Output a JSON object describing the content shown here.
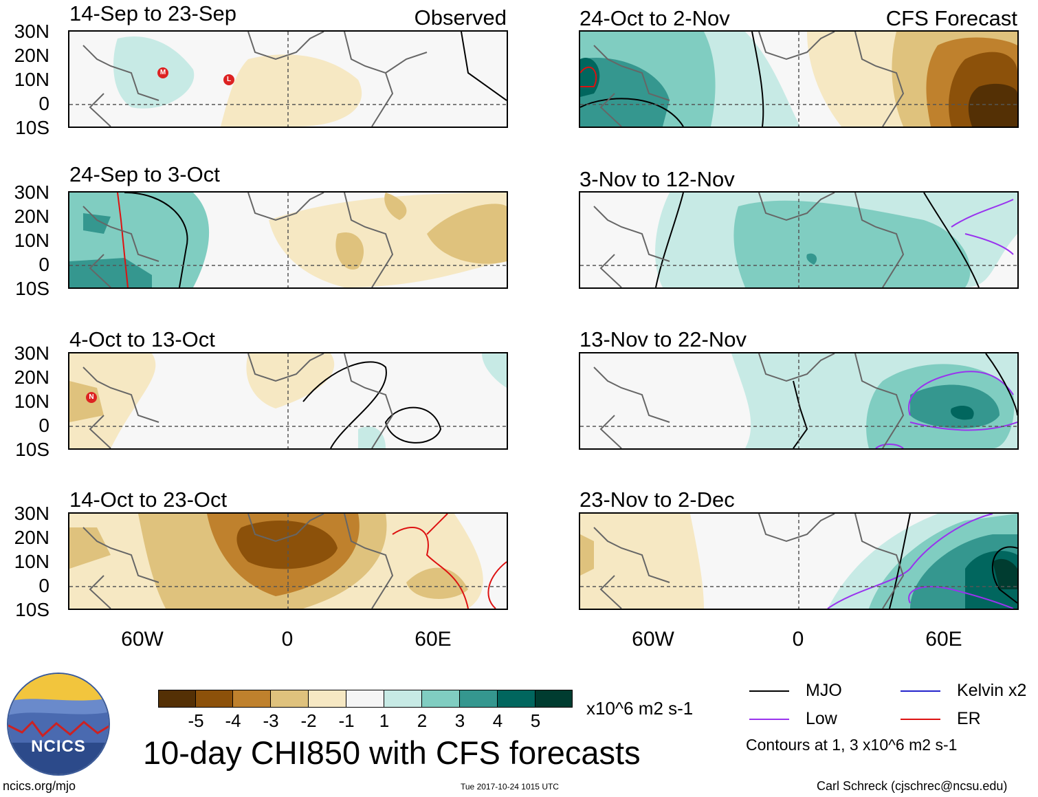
{
  "left_panels": [
    {
      "title": "14-Sep to 23-Sep",
      "tag": "Observed"
    },
    {
      "title": "24-Sep to 3-Oct",
      "tag": ""
    },
    {
      "title": "4-Oct to 13-Oct",
      "tag": ""
    },
    {
      "title": "14-Oct to 23-Oct",
      "tag": ""
    }
  ],
  "right_panels": [
    {
      "title": "24-Oct to 2-Nov",
      "tag": "CFS Forecast"
    },
    {
      "title": "3-Nov to 12-Nov",
      "tag": ""
    },
    {
      "title": "13-Nov to 22-Nov",
      "tag": ""
    },
    {
      "title": "23-Nov to 2-Dec",
      "tag": ""
    }
  ],
  "lat_labels": [
    "30N",
    "20N",
    "10N",
    "0",
    "10S"
  ],
  "lon_labels": [
    "60W",
    "0",
    "60E"
  ],
  "storm_markers": [
    {
      "panel": 0,
      "letter": "M"
    },
    {
      "panel": 0,
      "letter": "L"
    },
    {
      "panel": 2,
      "letter": "N"
    }
  ],
  "colorbar": {
    "colors": [
      "#543005",
      "#8c510a",
      "#bf812d",
      "#dfc27d",
      "#f6e8c3",
      "#f5f5f5",
      "#c7eae5",
      "#80cdc1",
      "#35978f",
      "#01665e",
      "#003c30"
    ],
    "labels": [
      "-5",
      "-4",
      "-3",
      "-2",
      "-1",
      "1",
      "2",
      "3",
      "4",
      "5"
    ],
    "units": "x10^6 m2 s-1"
  },
  "main_title": "10-day CHI850 with CFS forecasts",
  "legend": {
    "items": [
      {
        "label": "MJO",
        "color": "#000000"
      },
      {
        "label": "Kelvin x2",
        "color": "#2222cc"
      },
      {
        "label": "Low",
        "color": "#9933ee"
      },
      {
        "label": "ER",
        "color": "#dd1111"
      }
    ],
    "contours_note": "Contours at 1, 3 x10^6 m2 s-1"
  },
  "logo_text": "NCICS",
  "footer": {
    "left": "ncics.org/mjo",
    "center": "Tue 2017-10-24 1015 UTC",
    "right": "Carl Schreck (cjschrec@ncsu.edu)"
  }
}
